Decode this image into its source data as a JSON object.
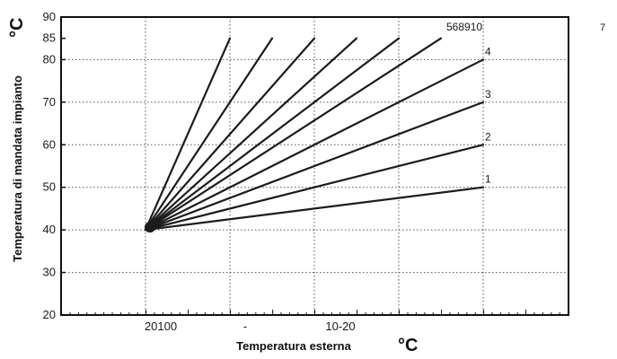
{
  "chart_data": {
    "type": "line",
    "title": "",
    "xlabel": "Temperatura esterna",
    "ylabel": "Temperatura di mandata impianto",
    "x_unit": "°C",
    "y_unit": "°C",
    "ylim": [
      20,
      90
    ],
    "y_ticks": [
      20,
      30,
      40,
      50,
      60,
      70,
      80,
      85,
      90
    ],
    "x_tick_labels": [
      "20100",
      "-",
      "10-20"
    ],
    "grid": true,
    "legend": "none",
    "origin": {
      "x": 0,
      "y": 40
    },
    "series": [
      {
        "name": "1",
        "end_x": 8,
        "end_y": 50
      },
      {
        "name": "2",
        "end_x": 8,
        "end_y": 60
      },
      {
        "name": "3",
        "end_x": 8,
        "end_y": 70
      },
      {
        "name": "4",
        "end_x": 8,
        "end_y": 80
      },
      {
        "end_x": 7,
        "end_y": 85
      },
      {
        "end_x": 6,
        "end_y": 85
      },
      {
        "end_x": 5,
        "end_y": 85
      },
      {
        "end_x": 4,
        "end_y": 85
      },
      {
        "end_x": 3,
        "end_y": 85
      },
      {
        "end_x": 2,
        "end_y": 85
      }
    ],
    "top_label": "568910",
    "corner_label": "7",
    "colors": {
      "line": "#1c1c1c",
      "grid": "#555555",
      "frame": "#111111"
    }
  }
}
